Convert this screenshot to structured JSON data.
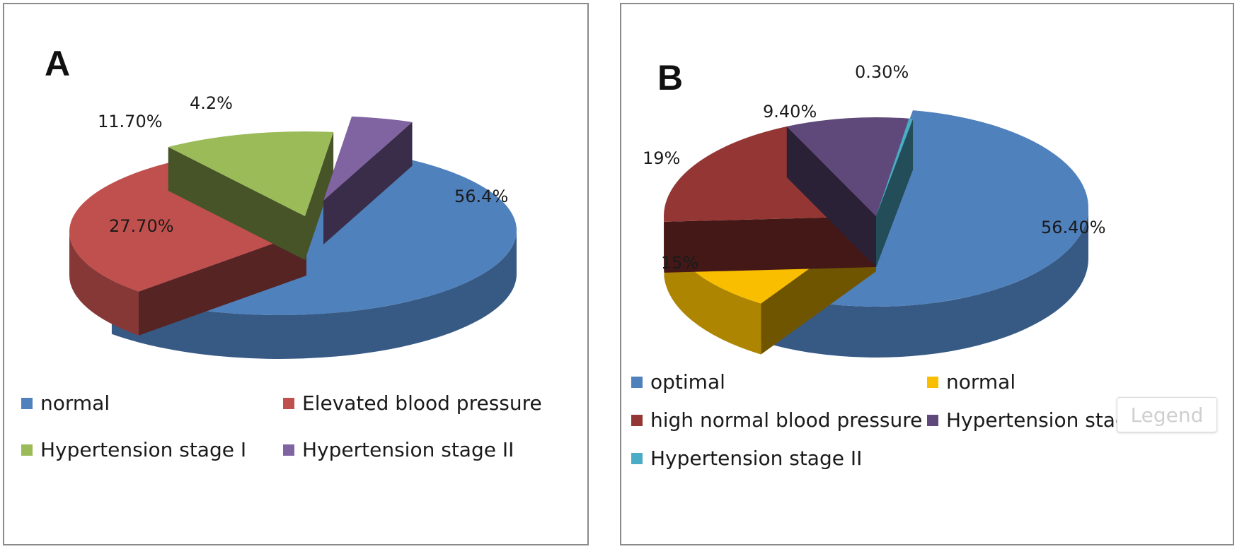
{
  "chart_data": [
    {
      "type": "pie",
      "panel_label": "A",
      "categories": [
        "normal",
        "Elevated blood  pressure",
        "Hypertension stage I",
        "Hypertension stage II"
      ],
      "values": [
        56.4,
        27.7,
        11.7,
        4.2
      ],
      "data_labels": [
        "56.4%",
        "27.70%",
        "11.70%",
        "4.2%"
      ],
      "colors": [
        "#4f81bd",
        "#c0504d",
        "#9bbb59",
        "#8064a2"
      ],
      "style": "3d exploded",
      "legend_position": "bottom"
    },
    {
      "type": "pie",
      "panel_label": "B",
      "categories": [
        "optimal",
        "normal",
        "high normal blood pressure",
        "Hypertension stage I",
        "Hypertension stage II"
      ],
      "values": [
        56.4,
        15,
        19,
        9.4,
        0.3
      ],
      "data_labels": [
        "56.40%",
        "15%",
        "19%",
        "9.40%",
        "0.30%"
      ],
      "colors": [
        "#4f81bd",
        "#f9be00",
        "#943634",
        "#5f497a",
        "#4bacc6"
      ],
      "style": "3d exploded",
      "legend_position": "bottom"
    }
  ],
  "legend_tooltip": "Legend"
}
